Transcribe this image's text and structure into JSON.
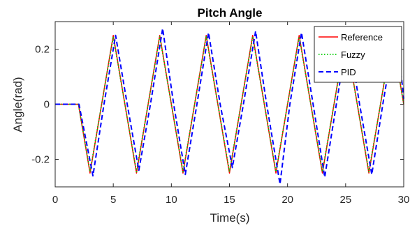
{
  "chart_data": {
    "type": "line",
    "title": "Pitch Angle",
    "xlabel": "Time(s)",
    "ylabel": "Angle(rad)",
    "xlim": [
      0,
      30
    ],
    "ylim": [
      -0.3,
      0.3
    ],
    "xticks": [
      0,
      5,
      10,
      15,
      20,
      25,
      30
    ],
    "xtick_labels": [
      "0",
      "5",
      "10",
      "15",
      "20",
      "25",
      "30"
    ],
    "yticks": [
      -0.2,
      0,
      0.2
    ],
    "ytick_labels": [
      "-0.2",
      "0",
      "0.2"
    ],
    "grid": false,
    "legend_position": "top-right",
    "series": [
      {
        "name": "Reference",
        "color": "#ff0000",
        "dash": "solid",
        "x": [
          0,
          2,
          3,
          4,
          5,
          6,
          7,
          8,
          9,
          10,
          11,
          12,
          13,
          14,
          15,
          16,
          17,
          18,
          19,
          20,
          21,
          22,
          23,
          24,
          25,
          26,
          27,
          28,
          29,
          30
        ],
        "y": [
          0,
          0,
          -0.25,
          0,
          0.25,
          0,
          -0.25,
          0,
          0.25,
          0,
          -0.25,
          0,
          0.25,
          0,
          -0.25,
          0,
          0.25,
          0,
          -0.25,
          0,
          0.25,
          0,
          -0.25,
          0,
          0.25,
          0,
          -0.25,
          0,
          0.25,
          0
        ]
      },
      {
        "name": "Fuzzy",
        "color": "#00cc00",
        "dash": "dotted",
        "x": [
          0,
          2,
          3,
          4,
          5,
          6,
          7,
          8,
          9,
          10,
          11,
          12,
          13,
          14,
          15,
          16,
          17,
          18,
          19,
          20,
          21,
          22,
          23,
          24,
          25,
          26,
          27,
          28,
          29,
          30
        ],
        "y": [
          0,
          0,
          -0.245,
          0,
          0.245,
          0,
          -0.245,
          0,
          0.245,
          0,
          -0.245,
          0,
          0.245,
          0,
          -0.245,
          0,
          0.245,
          0,
          -0.245,
          0,
          0.245,
          0,
          -0.245,
          0,
          0.245,
          0,
          -0.245,
          0,
          0.245,
          0
        ]
      },
      {
        "name": "PID",
        "color": "#0000ff",
        "dash": "dashed",
        "x": [
          0,
          2.05,
          3.25,
          4.2,
          5.2,
          6.2,
          7.2,
          8.2,
          9.25,
          10.2,
          11.2,
          12.2,
          13.2,
          14.2,
          15.25,
          16.2,
          17.25,
          18.2,
          19.35,
          20.2,
          21.2,
          22.2,
          23.2,
          24.2,
          25.2,
          26.2,
          27.25,
          28.2,
          29.2,
          29.8,
          30
        ],
        "y": [
          0,
          0,
          -0.26,
          0,
          0.25,
          0,
          -0.24,
          0,
          0.275,
          0,
          -0.255,
          0,
          0.26,
          0,
          -0.23,
          0,
          0.265,
          0,
          -0.29,
          0,
          0.26,
          0,
          -0.265,
          0,
          0.26,
          0,
          -0.255,
          0,
          0.25,
          0.1,
          0.02
        ]
      }
    ]
  }
}
